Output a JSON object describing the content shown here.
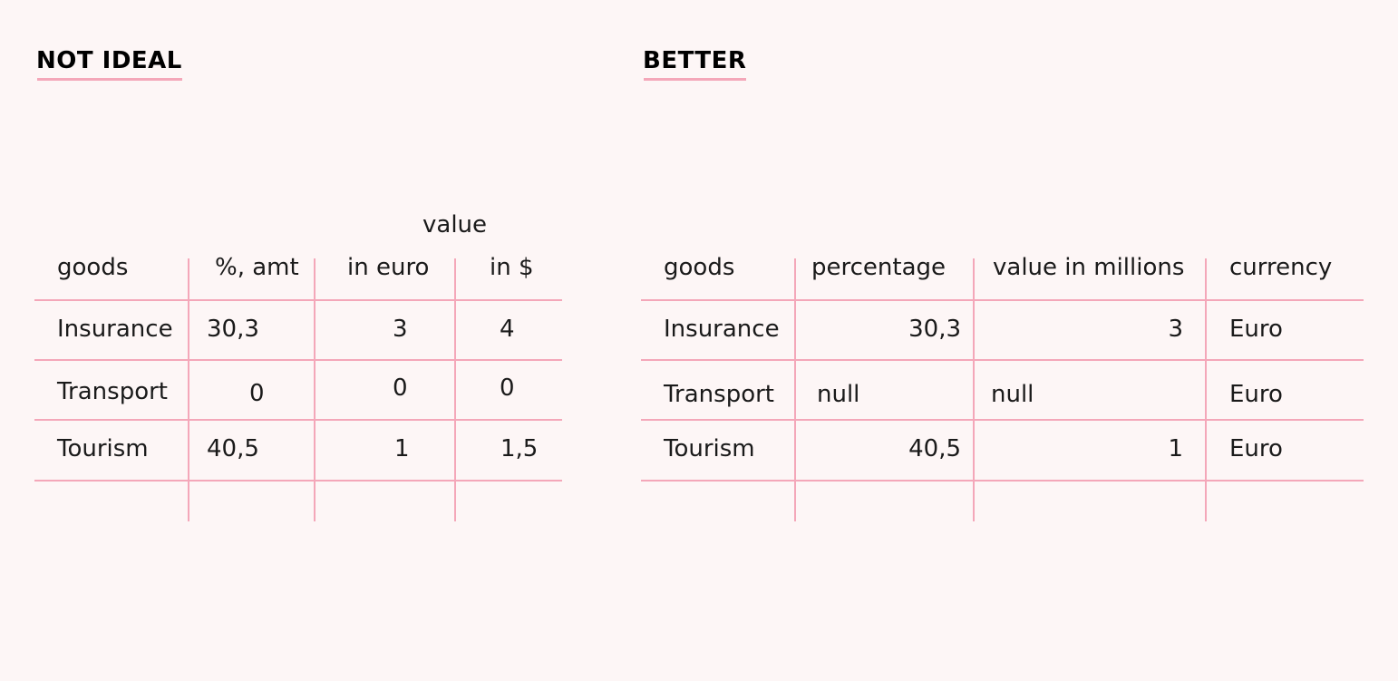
{
  "left": {
    "title": "NOT IDEAL",
    "group_header": "value",
    "headers": [
      "goods",
      "%, amt",
      "in euro",
      "in $"
    ],
    "rows": [
      [
        "Insurance",
        "30,3",
        "3",
        "4"
      ],
      [
        "Transport",
        "0",
        "0",
        "0"
      ],
      [
        "Tourism",
        "40,5",
        "1",
        "1,5"
      ]
    ]
  },
  "right": {
    "title": "BETTER",
    "headers": [
      "goods",
      "percentage",
      "value in millions",
      "currency"
    ],
    "rows": [
      [
        "Insurance",
        "30,3",
        "3",
        "Euro"
      ],
      [
        "Transport",
        "null",
        "null",
        "Euro"
      ],
      [
        "Tourism",
        "40,5",
        "1",
        "Euro"
      ]
    ]
  },
  "colors": {
    "line": "#f4a7b9",
    "background": "#fdf6f6"
  }
}
